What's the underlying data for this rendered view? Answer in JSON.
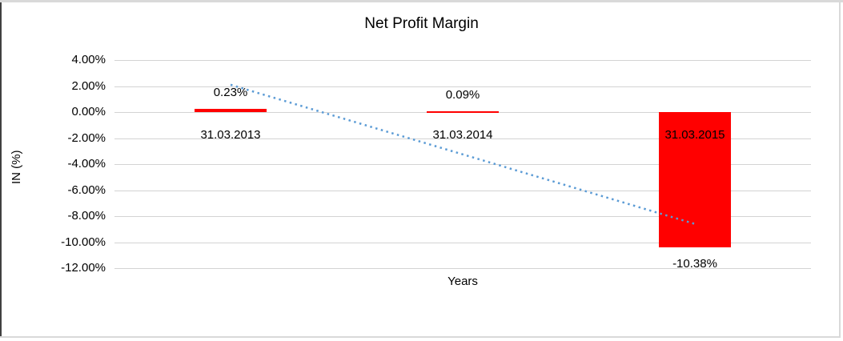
{
  "window": {
    "background": "#FFFFFF",
    "frame_top_color": "#D9D9D9",
    "frame_left_color": "#404040",
    "frame_right_color": "#D9D9D9",
    "frame_bottom_color": "#D9D9D9"
  },
  "chart_data": {
    "type": "bar",
    "title": "Net Profit Margin",
    "xlabel": "Years",
    "ylabel": "IN (%)",
    "categories": [
      "31.03.2013",
      "31.03.2014",
      "31.03.2015"
    ],
    "values": [
      0.23,
      0.09,
      -10.38
    ],
    "data_labels": [
      "0.23%",
      "0.09%",
      "-10.38%"
    ],
    "yticks": [
      4,
      2,
      0,
      -2,
      -4,
      -6,
      -8,
      -10,
      -12
    ],
    "ytick_labels": [
      "4.00%",
      "2.00%",
      "0.00%",
      "-2.00%",
      "-4.00%",
      "-6.00%",
      "-8.00%",
      "-10.00%",
      "-12.00%"
    ],
    "ylim": [
      -12,
      4
    ],
    "grid": true,
    "legend": false,
    "bar_color": "#FF0000",
    "gridline_color": "#D3D3D3",
    "text_color": "#000000",
    "trendline": {
      "type": "linear",
      "style": "dotted",
      "color": "#5B9BD5",
      "start_pct": 2.1,
      "end_pct": -8.6
    }
  }
}
